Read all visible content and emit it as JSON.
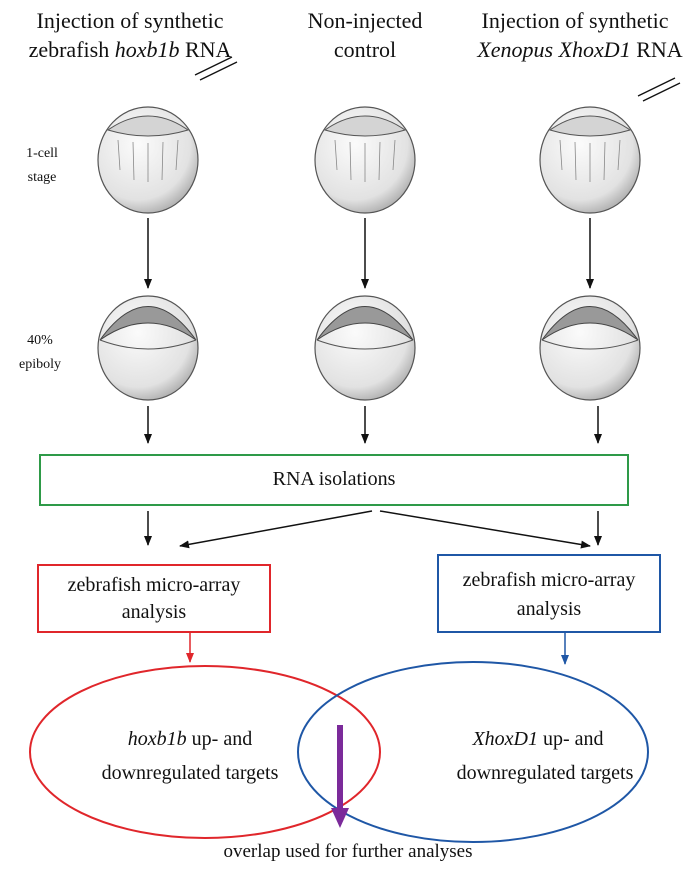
{
  "header": {
    "left": {
      "line1": "Injection of synthetic",
      "line2": [
        "zebrafish",
        "hoxb1b",
        "RNA"
      ]
    },
    "middle": {
      "line1": "Non-injected",
      "line2": "control"
    },
    "right": {
      "line1": "Injection of synthetic",
      "line2": [
        "Xenopus XhoxD1",
        "RNA"
      ]
    }
  },
  "stages": [
    {
      "lines": [
        "1-cell",
        "stage"
      ]
    },
    {
      "lines": [
        "40%",
        "epiboly"
      ]
    }
  ],
  "rna_box": {
    "label": "RNA isolations"
  },
  "array_boxes": [
    {
      "lines": [
        "zebrafish micro-array",
        "analysis"
      ]
    },
    {
      "lines": [
        "zebrafish micro-array",
        "analysis"
      ]
    }
  ],
  "target_sets": [
    {
      "gene": "hoxb1b",
      "line1_rest": "up- and",
      "line2": "downregulated targets"
    },
    {
      "gene": "XhoxD1",
      "line1_rest": "up- and",
      "line2": "downregulated targets"
    }
  ],
  "footer": {
    "label": "overlap used for further analyses"
  }
}
